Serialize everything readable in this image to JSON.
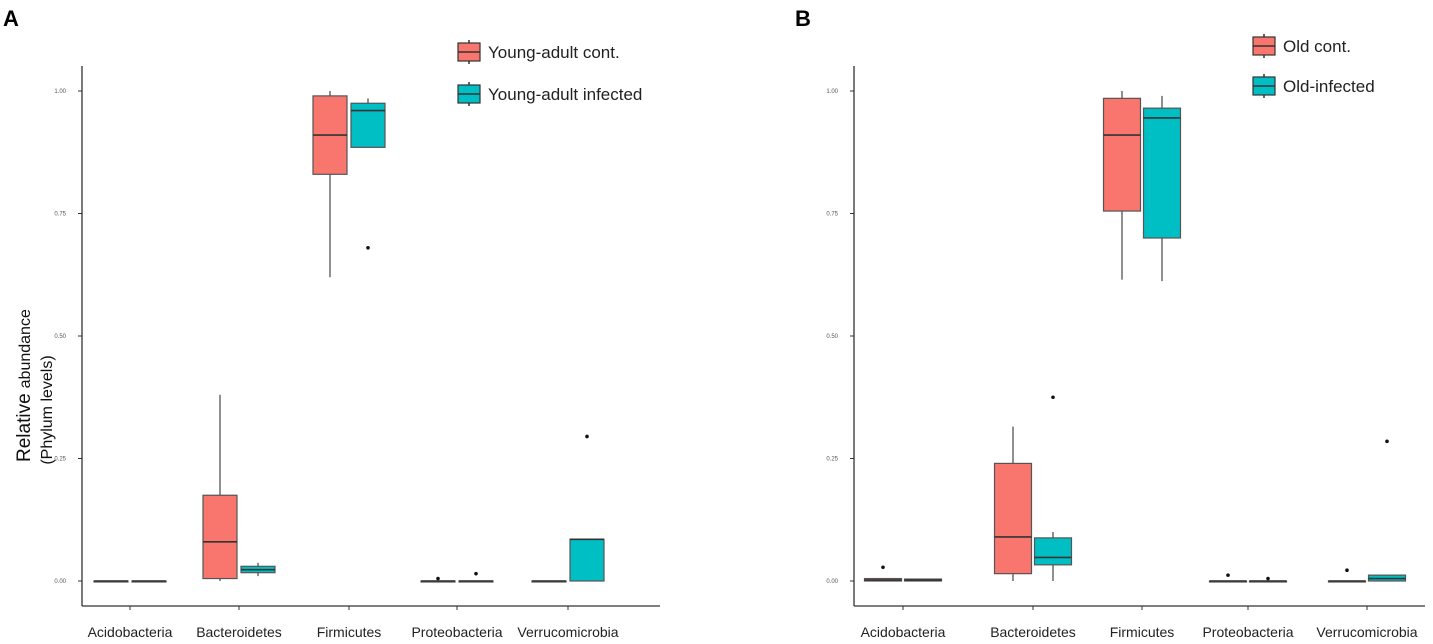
{
  "panels_meta": {
    "y_label_main": "Relative",
    "y_label_sub": "abundance",
    "y_label_line2": "(Phylum levels)"
  },
  "colors": {
    "control": "#F8766D",
    "infected": "#00BFC4",
    "outline": "#555555",
    "axis": "#333333"
  },
  "chart_data": [
    {
      "type": "boxplot",
      "panel_label": "A",
      "title": "",
      "xlabel": "",
      "ylabel": "Relative abundance (Phylum levels)",
      "ylim": [
        -0.05,
        1.05
      ],
      "y_ticks": [
        0.0,
        0.25,
        0.5,
        0.75,
        1.0
      ],
      "y_tick_labels": [
        "0.00",
        "0.25",
        "0.50",
        "0.75",
        "1.00"
      ],
      "categories": [
        "Acidobacteria",
        "Bacteroidetes",
        "Firmicutes",
        "Proteobacteria",
        "Verrucomicrobia"
      ],
      "legend": [
        "Young-adult  cont.",
        "Young-adult  infected"
      ],
      "series": [
        {
          "name": "Young-adult cont.",
          "boxes": [
            {
              "min": 0.0,
              "q1": 0.0,
              "median": 0.0,
              "q3": 0.0,
              "max": 0.0,
              "outliers": []
            },
            {
              "min": 0.0,
              "q1": 0.005,
              "median": 0.08,
              "q3": 0.175,
              "max": 0.38,
              "outliers": []
            },
            {
              "min": 0.62,
              "q1": 0.83,
              "median": 0.91,
              "q3": 0.99,
              "max": 1.0,
              "outliers": []
            },
            {
              "min": 0.0,
              "q1": 0.0,
              "median": 0.0,
              "q3": 0.0,
              "max": 0.0,
              "outliers": [
                0.005
              ]
            },
            {
              "min": 0.0,
              "q1": 0.0,
              "median": 0.0,
              "q3": 0.0,
              "max": 0.0,
              "outliers": []
            }
          ]
        },
        {
          "name": "Young-adult infected",
          "boxes": [
            {
              "min": 0.0,
              "q1": 0.0,
              "median": 0.0,
              "q3": 0.0,
              "max": 0.0,
              "outliers": []
            },
            {
              "min": 0.01,
              "q1": 0.017,
              "median": 0.023,
              "q3": 0.03,
              "max": 0.037,
              "outliers": []
            },
            {
              "min": 0.885,
              "q1": 0.885,
              "median": 0.96,
              "q3": 0.975,
              "max": 0.985,
              "outliers": [
                0.68
              ]
            },
            {
              "min": 0.0,
              "q1": 0.0,
              "median": 0.0,
              "q3": 0.0,
              "max": 0.0,
              "outliers": [
                0.015
              ]
            },
            {
              "min": 0.0,
              "q1": 0.0,
              "median": 0.085,
              "q3": 0.085,
              "max": 0.085,
              "outliers": [
                0.295
              ]
            }
          ]
        }
      ]
    },
    {
      "type": "boxplot",
      "panel_label": "B",
      "title": "",
      "xlabel": "",
      "ylabel": "",
      "ylim": [
        -0.05,
        1.05
      ],
      "y_ticks": [
        0.0,
        0.25,
        0.5,
        0.75,
        1.0
      ],
      "y_tick_labels": [
        "0.00",
        "0.25",
        "0.50",
        "0.75",
        "1.00"
      ],
      "categories": [
        "Acidobacteria",
        "Bacteroidetes",
        "Firmicutes",
        "Proteobacteria",
        "Verrucomicrobia"
      ],
      "legend": [
        "Old cont.",
        "Old-infected"
      ],
      "series": [
        {
          "name": "Old cont.",
          "boxes": [
            {
              "min": 0.0,
              "q1": 0.0,
              "median": 0.002,
              "q3": 0.005,
              "max": 0.005,
              "outliers": [
                0.028
              ]
            },
            {
              "min": 0.0,
              "q1": 0.015,
              "median": 0.09,
              "q3": 0.24,
              "max": 0.315,
              "outliers": []
            },
            {
              "min": 0.615,
              "q1": 0.755,
              "median": 0.91,
              "q3": 0.985,
              "max": 1.0,
              "outliers": []
            },
            {
              "min": 0.0,
              "q1": 0.0,
              "median": 0.0,
              "q3": 0.0,
              "max": 0.0,
              "outliers": [
                0.012
              ]
            },
            {
              "min": 0.0,
              "q1": 0.0,
              "median": 0.0,
              "q3": 0.0,
              "max": 0.0,
              "outliers": [
                0.022
              ]
            }
          ]
        },
        {
          "name": "Old-infected",
          "boxes": [
            {
              "min": 0.0,
              "q1": 0.0,
              "median": 0.002,
              "q3": 0.004,
              "max": 0.004,
              "outliers": []
            },
            {
              "min": 0.0,
              "q1": 0.033,
              "median": 0.048,
              "q3": 0.088,
              "max": 0.1,
              "outliers": [
                0.375
              ]
            },
            {
              "min": 0.612,
              "q1": 0.7,
              "median": 0.945,
              "q3": 0.965,
              "max": 0.99,
              "outliers": []
            },
            {
              "min": 0.0,
              "q1": 0.0,
              "median": 0.0,
              "q3": 0.0,
              "max": 0.0,
              "outliers": [
                0.005
              ]
            },
            {
              "min": 0.0,
              "q1": 0.0,
              "median": 0.005,
              "q3": 0.012,
              "max": 0.012,
              "outliers": [
                0.285
              ]
            }
          ]
        }
      ]
    }
  ]
}
